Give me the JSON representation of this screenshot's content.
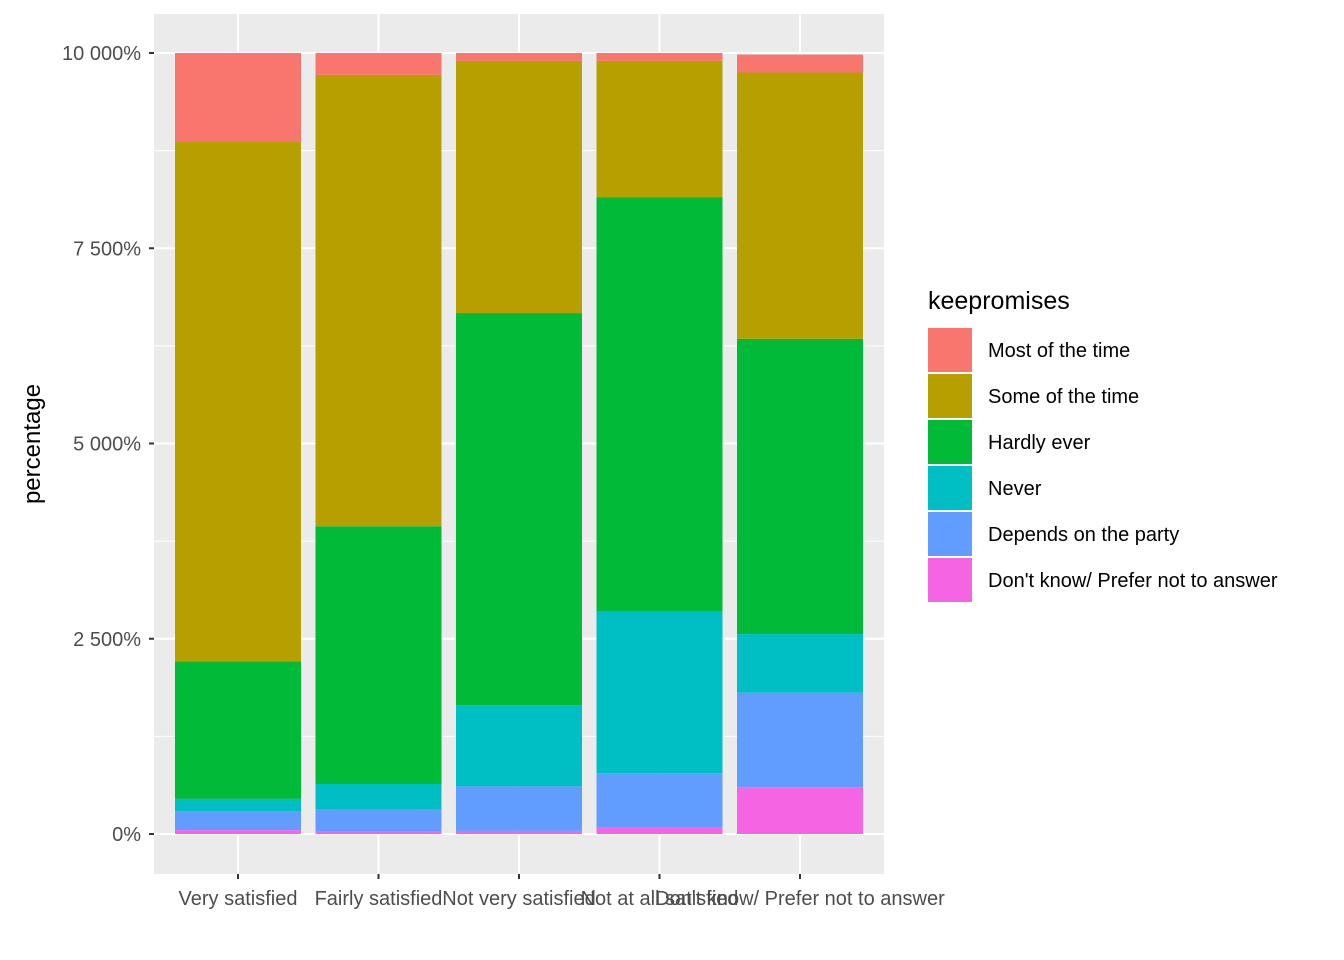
{
  "chart_data": {
    "type": "bar",
    "stacked": true,
    "title": "",
    "xlabel": "",
    "ylabel": "percentage",
    "ylim": [
      0,
      10000
    ],
    "yticks": [
      0,
      2500,
      5000,
      7500,
      10000
    ],
    "ytick_labels": [
      "0%",
      "2 500%",
      "5 000%",
      "7 500%",
      "10 000%"
    ],
    "grid": true,
    "legend_position": "right",
    "legend_title": "keepromises",
    "categories": [
      "Very satisfied",
      "Fairly satisfied",
      "Not very satisfied",
      "Not at all satisfied",
      "Don't know/ Prefer not to answer"
    ],
    "series": [
      {
        "name": "Most of the time",
        "color": "#F8766D",
        "values": [
          1140,
          280,
          100,
          100,
          230
        ]
      },
      {
        "name": "Some of the time",
        "color": "#B79F00",
        "values": [
          6650,
          5780,
          3230,
          1750,
          3410
        ]
      },
      {
        "name": "Hardly ever",
        "color": "#00BA38",
        "values": [
          1760,
          3300,
          5020,
          5300,
          3780
        ]
      },
      {
        "name": "Never",
        "color": "#00BFC4",
        "values": [
          160,
          320,
          1040,
          2070,
          750
        ]
      },
      {
        "name": "Depends on the party",
        "color": "#619CFF",
        "values": [
          240,
          290,
          570,
          690,
          1210
        ]
      },
      {
        "name": "Don't know/ Prefer not to answer",
        "color": "#F564E3",
        "values": [
          50,
          30,
          40,
          90,
          600
        ]
      }
    ]
  }
}
